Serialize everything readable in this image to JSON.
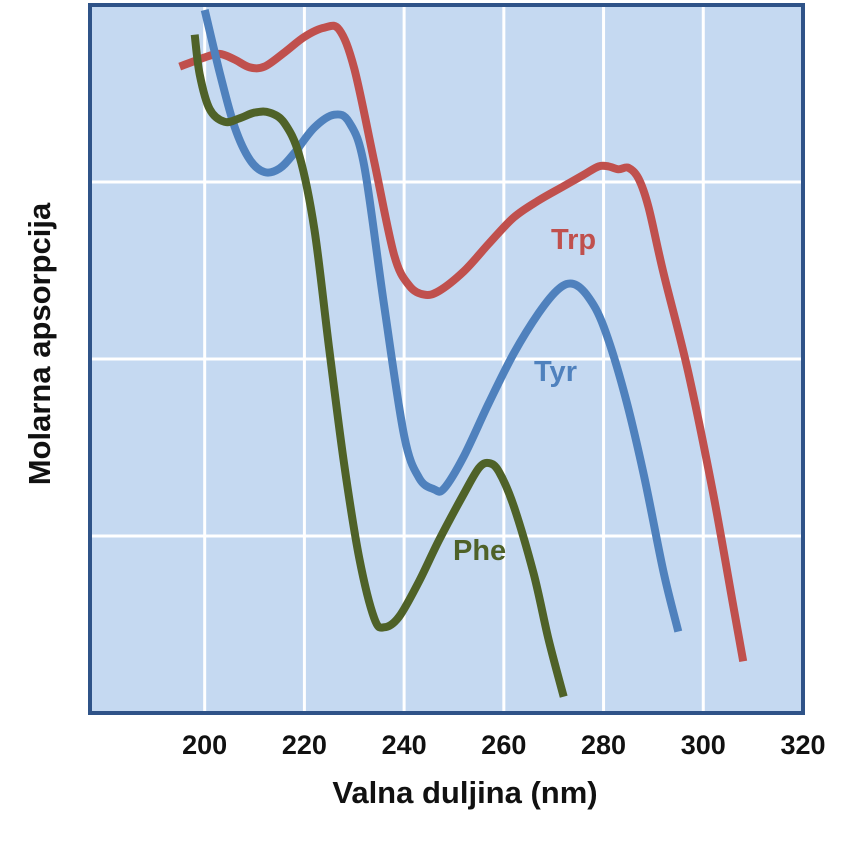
{
  "chart_data": {
    "type": "line",
    "xlabel": "Valna duljina (nm)",
    "ylabel": "Molarna apsorpcija",
    "xlim": [
      177,
      320
    ],
    "ylim": [
      0,
      100
    ],
    "x_ticks": [
      "200",
      "220",
      "240",
      "260",
      "280",
      "300",
      "320"
    ],
    "y_tick_labels": "none",
    "grid": true,
    "background_color": "#c5d9f1",
    "border_color": "#2f5388",
    "series": [
      {
        "name": "Trp",
        "color": "#c0504d",
        "points": [
          [
            195,
            91.3
          ],
          [
            200,
            92.6
          ],
          [
            203,
            93.1
          ],
          [
            206,
            92.3
          ],
          [
            209,
            91.2
          ],
          [
            212,
            91.3
          ],
          [
            216,
            93.3
          ],
          [
            220,
            95.5
          ],
          [
            224,
            96.8
          ],
          [
            227,
            96.5
          ],
          [
            230,
            91.0
          ],
          [
            234,
            77.9
          ],
          [
            238,
            64.7
          ],
          [
            241,
            60.4
          ],
          [
            244,
            59.1
          ],
          [
            247,
            59.6
          ],
          [
            252,
            62.4
          ],
          [
            257,
            66.3
          ],
          [
            262,
            70.0
          ],
          [
            267,
            72.4
          ],
          [
            272,
            74.4
          ],
          [
            276,
            76.0
          ],
          [
            279,
            77.2
          ],
          [
            281,
            77.2
          ],
          [
            283,
            76.8
          ],
          [
            285,
            77.0
          ],
          [
            287,
            75.5
          ],
          [
            289,
            71.5
          ],
          [
            292,
            62.2
          ],
          [
            297,
            48.1
          ],
          [
            302,
            30.9
          ],
          [
            306,
            15.2
          ],
          [
            308,
            7.3
          ]
        ]
      },
      {
        "name": "Tyr",
        "color": "#4f81bd",
        "points": [
          [
            200,
            99.3
          ],
          [
            203,
            90.5
          ],
          [
            206,
            82.8
          ],
          [
            209,
            78.2
          ],
          [
            212,
            76.4
          ],
          [
            215,
            76.9
          ],
          [
            218,
            79.1
          ],
          [
            222,
            82.7
          ],
          [
            226,
            84.5
          ],
          [
            229,
            83.4
          ],
          [
            232,
            77.3
          ],
          [
            236,
            57.5
          ],
          [
            240,
            39.2
          ],
          [
            243,
            33.2
          ],
          [
            246,
            31.6
          ],
          [
            248,
            31.7
          ],
          [
            252,
            36.3
          ],
          [
            257,
            43.8
          ],
          [
            262,
            50.8
          ],
          [
            267,
            56.5
          ],
          [
            271,
            59.9
          ],
          [
            274,
            60.6
          ],
          [
            277,
            58.7
          ],
          [
            280,
            54.6
          ],
          [
            284,
            45.6
          ],
          [
            288,
            33.9
          ],
          [
            292,
            20.0
          ],
          [
            295,
            11.5
          ]
        ]
      },
      {
        "name": "Phe",
        "color": "#4f6228",
        "points": [
          [
            198,
            95.8
          ],
          [
            199,
            90.2
          ],
          [
            201,
            85.3
          ],
          [
            204,
            83.5
          ],
          [
            207,
            84.0
          ],
          [
            210,
            84.8
          ],
          [
            213,
            84.8
          ],
          [
            216,
            83.3
          ],
          [
            219,
            78.7
          ],
          [
            222,
            68.3
          ],
          [
            225,
            51.3
          ],
          [
            228,
            35.0
          ],
          [
            231,
            21.9
          ],
          [
            234,
            13.4
          ],
          [
            236,
            12.1
          ],
          [
            239,
            13.6
          ],
          [
            243,
            18.6
          ],
          [
            247,
            24.4
          ],
          [
            252,
            31.0
          ],
          [
            255,
            34.6
          ],
          [
            257,
            35.3
          ],
          [
            259,
            34.1
          ],
          [
            262,
            29.2
          ],
          [
            266,
            19.6
          ],
          [
            269,
            10.3
          ],
          [
            272,
            2.3
          ]
        ]
      }
    ]
  }
}
